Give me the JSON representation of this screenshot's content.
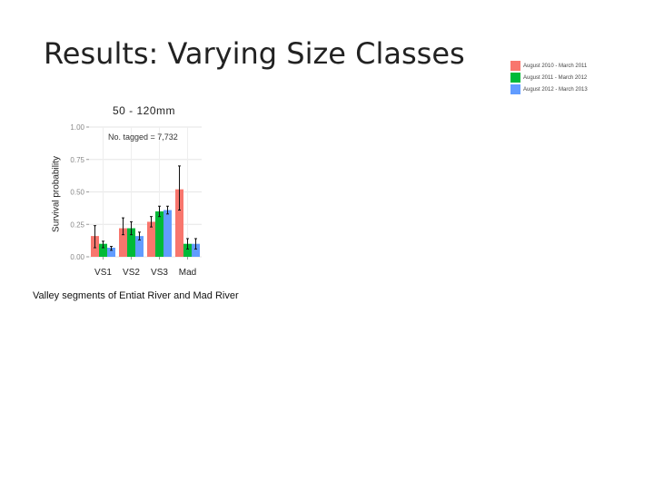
{
  "slide": {
    "title": "Results: Varying Size Classes"
  },
  "legend": {
    "items": [
      {
        "label": "August 2010 - March 2011",
        "color": "#f8766d"
      },
      {
        "label": "August 2011 - March 2012",
        "color": "#00ba38"
      },
      {
        "label": "August 2012 - March 2013",
        "color": "#619cff"
      }
    ]
  },
  "caption": "Valley segments of Entiat River and Mad River",
  "chart_data": {
    "type": "bar",
    "title": "50 - 120mm",
    "xlabel": "",
    "ylabel": "Survival probability",
    "annotation": "No. tagged = 7,732",
    "categories": [
      "VS1",
      "VS2",
      "VS3",
      "Mad"
    ],
    "ylim": [
      0,
      1
    ],
    "yticks": [
      0,
      0.25,
      0.5,
      0.75,
      1
    ],
    "ytick_labels": [
      "0.00",
      "0.25",
      "0.50",
      "0.75",
      "1.00"
    ],
    "grid": true,
    "legend_position": "top-right",
    "series": [
      {
        "name": "August 2010 - March 2011",
        "color": "#f8766d",
        "values": [
          0.16,
          0.22,
          0.27,
          0.52
        ],
        "err_low": [
          0.07,
          0.17,
          0.23,
          0.36
        ],
        "err_high": [
          0.24,
          0.3,
          0.31,
          0.7
        ]
      },
      {
        "name": "August 2011 - March 2012",
        "color": "#00ba38",
        "values": [
          0.1,
          0.22,
          0.35,
          0.1
        ],
        "err_low": [
          0.07,
          0.17,
          0.31,
          0.06
        ],
        "err_high": [
          0.12,
          0.27,
          0.39,
          0.14
        ]
      },
      {
        "name": "August 2012 - March 2013",
        "color": "#619cff",
        "values": [
          0.07,
          0.16,
          0.36,
          0.1
        ],
        "err_low": [
          0.05,
          0.13,
          0.33,
          0.06
        ],
        "err_high": [
          0.08,
          0.19,
          0.39,
          0.14
        ]
      }
    ]
  }
}
